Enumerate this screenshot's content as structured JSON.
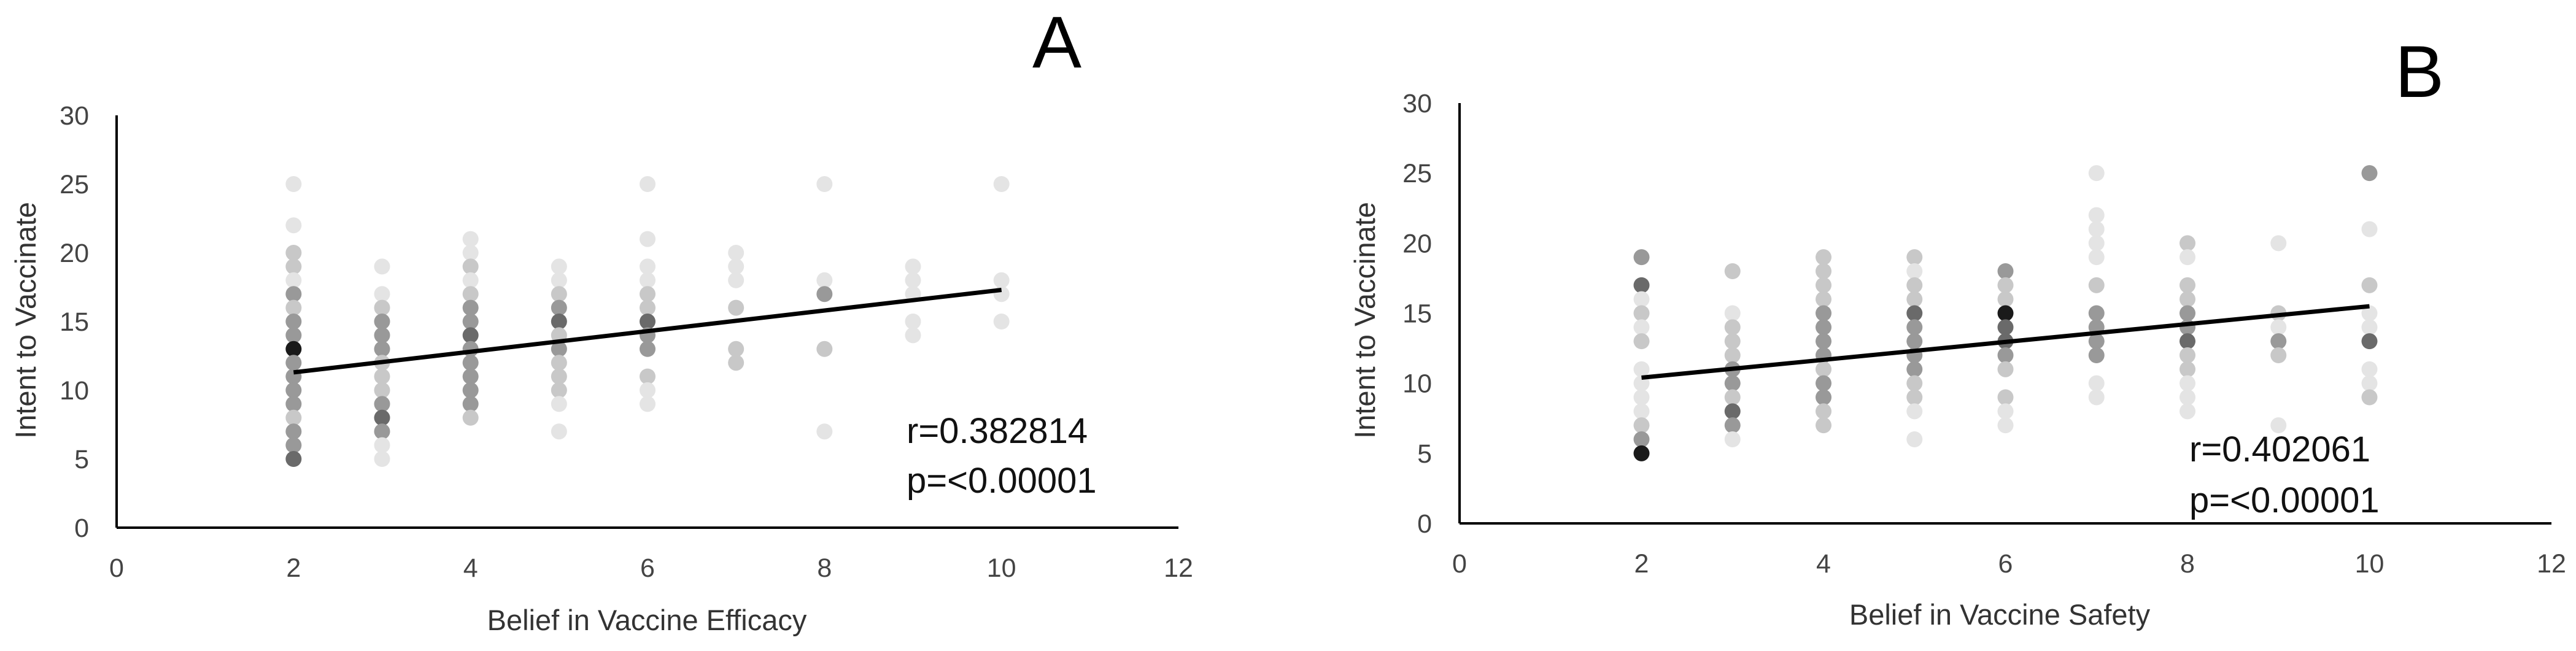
{
  "chart_data": [
    {
      "type": "scatter",
      "panel_label": "A",
      "xlabel": "Belief in Vaccine Efficacy",
      "ylabel": "Intent to Vaccinate",
      "xlim": [
        0,
        12
      ],
      "ylim": [
        0,
        30
      ],
      "xticks": [
        "0",
        "2",
        "4",
        "6",
        "8",
        "10",
        "12"
      ],
      "yticks": [
        "0",
        "5",
        "10",
        "15",
        "20",
        "25",
        "30"
      ],
      "grid": false,
      "legend": "none",
      "annotations": [
        "r=0.382814",
        "p=<0.00001"
      ],
      "trendline": {
        "x": [
          2,
          10
        ],
        "y": [
          11.3,
          17.3
        ]
      },
      "points": [
        [
          2,
          25,
          1
        ],
        [
          2,
          22,
          1
        ],
        [
          2,
          20,
          2
        ],
        [
          2,
          19,
          2
        ],
        [
          2,
          18,
          1
        ],
        [
          2,
          17,
          3
        ],
        [
          2,
          16,
          2
        ],
        [
          2,
          15,
          3
        ],
        [
          2,
          14,
          3
        ],
        [
          2,
          13,
          5
        ],
        [
          2,
          12,
          3
        ],
        [
          2,
          11,
          3
        ],
        [
          2,
          10,
          3
        ],
        [
          2,
          9,
          3
        ],
        [
          2,
          8,
          2
        ],
        [
          2,
          7,
          3
        ],
        [
          2,
          6,
          3
        ],
        [
          2,
          5,
          4
        ],
        [
          3,
          19,
          1
        ],
        [
          3,
          17,
          1
        ],
        [
          3,
          16,
          2
        ],
        [
          3,
          15,
          3
        ],
        [
          3,
          14,
          3
        ],
        [
          3,
          13,
          3
        ],
        [
          3,
          12,
          2
        ],
        [
          3,
          11,
          2
        ],
        [
          3,
          10,
          2
        ],
        [
          3,
          9,
          3
        ],
        [
          3,
          8,
          4
        ],
        [
          3,
          7,
          3
        ],
        [
          3,
          6,
          1
        ],
        [
          3,
          5,
          1
        ],
        [
          4,
          21,
          1
        ],
        [
          4,
          20,
          1
        ],
        [
          4,
          19,
          2
        ],
        [
          4,
          18,
          1
        ],
        [
          4,
          17,
          2
        ],
        [
          4,
          16,
          3
        ],
        [
          4,
          15,
          3
        ],
        [
          4,
          14,
          4
        ],
        [
          4,
          13,
          3
        ],
        [
          4,
          12,
          3
        ],
        [
          4,
          11,
          3
        ],
        [
          4,
          10,
          3
        ],
        [
          4,
          9,
          3
        ],
        [
          4,
          8,
          2
        ],
        [
          5,
          19,
          1
        ],
        [
          5,
          18,
          1
        ],
        [
          5,
          17,
          2
        ],
        [
          5,
          16,
          3
        ],
        [
          5,
          15,
          4
        ],
        [
          5,
          14,
          2
        ],
        [
          5,
          13,
          3
        ],
        [
          5,
          12,
          2
        ],
        [
          5,
          11,
          2
        ],
        [
          5,
          10,
          2
        ],
        [
          5,
          9,
          1
        ],
        [
          5,
          7,
          1
        ],
        [
          6,
          25,
          1
        ],
        [
          6,
          21,
          1
        ],
        [
          6,
          19,
          1
        ],
        [
          6,
          18,
          1
        ],
        [
          6,
          17,
          2
        ],
        [
          6,
          16,
          2
        ],
        [
          6,
          15,
          4
        ],
        [
          6,
          14,
          3
        ],
        [
          6,
          13,
          3
        ],
        [
          6,
          11,
          2
        ],
        [
          6,
          10,
          1
        ],
        [
          6,
          9,
          1
        ],
        [
          7,
          20,
          1
        ],
        [
          7,
          19,
          1
        ],
        [
          7,
          18,
          1
        ],
        [
          7,
          16,
          2
        ],
        [
          7,
          13,
          2
        ],
        [
          7,
          12,
          2
        ],
        [
          8,
          25,
          1
        ],
        [
          8,
          18,
          1
        ],
        [
          8,
          17,
          3
        ],
        [
          8,
          13,
          2
        ],
        [
          8,
          7,
          1
        ],
        [
          9,
          19,
          1
        ],
        [
          9,
          18,
          1
        ],
        [
          9,
          17,
          1
        ],
        [
          9,
          15,
          1
        ],
        [
          9,
          14,
          1
        ],
        [
          10,
          25,
          1
        ],
        [
          10,
          18,
          1
        ],
        [
          10,
          17,
          1
        ],
        [
          10,
          15,
          1
        ]
      ]
    },
    {
      "type": "scatter",
      "panel_label": "B",
      "xlabel": "Belief in Vaccine Safety",
      "ylabel": "Intent to Vaccinate",
      "xlim": [
        0,
        12
      ],
      "ylim": [
        0,
        30
      ],
      "xticks": [
        "0",
        "2",
        "4",
        "6",
        "8",
        "10",
        "12"
      ],
      "yticks": [
        "0",
        "5",
        "10",
        "15",
        "20",
        "25",
        "30"
      ],
      "grid": false,
      "legend": "none",
      "annotations": [
        "r=0.402061",
        "p=<0.00001"
      ],
      "trendline": {
        "x": [
          2,
          10
        ],
        "y": [
          10.4,
          15.5
        ]
      },
      "points": [
        [
          2,
          19,
          3
        ],
        [
          2,
          17,
          4
        ],
        [
          2,
          16,
          1
        ],
        [
          2,
          15,
          2
        ],
        [
          2,
          14,
          1
        ],
        [
          2,
          13,
          2
        ],
        [
          2,
          11,
          1
        ],
        [
          2,
          10,
          1
        ],
        [
          2,
          9,
          1
        ],
        [
          2,
          8,
          1
        ],
        [
          2,
          7,
          2
        ],
        [
          2,
          6,
          3
        ],
        [
          2,
          5,
          5
        ],
        [
          3,
          18,
          2
        ],
        [
          3,
          15,
          1
        ],
        [
          3,
          14,
          2
        ],
        [
          3,
          13,
          2
        ],
        [
          3,
          12,
          2
        ],
        [
          3,
          11,
          3
        ],
        [
          3,
          10,
          3
        ],
        [
          3,
          9,
          2
        ],
        [
          3,
          8,
          4
        ],
        [
          3,
          7,
          3
        ],
        [
          3,
          6,
          1
        ],
        [
          4,
          19,
          2
        ],
        [
          4,
          18,
          2
        ],
        [
          4,
          17,
          2
        ],
        [
          4,
          16,
          2
        ],
        [
          4,
          15,
          3
        ],
        [
          4,
          14,
          3
        ],
        [
          4,
          13,
          3
        ],
        [
          4,
          12,
          3
        ],
        [
          4,
          11,
          2
        ],
        [
          4,
          10,
          3
        ],
        [
          4,
          9,
          3
        ],
        [
          4,
          8,
          2
        ],
        [
          4,
          7,
          2
        ],
        [
          5,
          19,
          2
        ],
        [
          5,
          18,
          1
        ],
        [
          5,
          17,
          2
        ],
        [
          5,
          16,
          2
        ],
        [
          5,
          15,
          4
        ],
        [
          5,
          14,
          3
        ],
        [
          5,
          13,
          3
        ],
        [
          5,
          12,
          3
        ],
        [
          5,
          11,
          3
        ],
        [
          5,
          10,
          2
        ],
        [
          5,
          9,
          2
        ],
        [
          5,
          8,
          1
        ],
        [
          5,
          6,
          1
        ],
        [
          6,
          18,
          3
        ],
        [
          6,
          17,
          2
        ],
        [
          6,
          16,
          2
        ],
        [
          6,
          15,
          5
        ],
        [
          6,
          14,
          4
        ],
        [
          6,
          13,
          4
        ],
        [
          6,
          12,
          3
        ],
        [
          6,
          11,
          2
        ],
        [
          6,
          9,
          2
        ],
        [
          6,
          8,
          1
        ],
        [
          6,
          7,
          1
        ],
        [
          7,
          25,
          1
        ],
        [
          7,
          22,
          1
        ],
        [
          7,
          21,
          1
        ],
        [
          7,
          20,
          1
        ],
        [
          7,
          19,
          1
        ],
        [
          7,
          17,
          2
        ],
        [
          7,
          15,
          3
        ],
        [
          7,
          14,
          3
        ],
        [
          7,
          13,
          3
        ],
        [
          7,
          12,
          3
        ],
        [
          7,
          10,
          1
        ],
        [
          7,
          9,
          1
        ],
        [
          8,
          20,
          2
        ],
        [
          8,
          19,
          1
        ],
        [
          8,
          17,
          2
        ],
        [
          8,
          16,
          2
        ],
        [
          8,
          15,
          3
        ],
        [
          8,
          14,
          3
        ],
        [
          8,
          13,
          4
        ],
        [
          8,
          12,
          2
        ],
        [
          8,
          11,
          2
        ],
        [
          8,
          10,
          1
        ],
        [
          8,
          9,
          1
        ],
        [
          8,
          8,
          1
        ],
        [
          9,
          20,
          1
        ],
        [
          9,
          15,
          2
        ],
        [
          9,
          14,
          1
        ],
        [
          9,
          13,
          3
        ],
        [
          9,
          12,
          2
        ],
        [
          9,
          7,
          1
        ],
        [
          10,
          25,
          3
        ],
        [
          10,
          21,
          1
        ],
        [
          10,
          17,
          2
        ],
        [
          10,
          15,
          1
        ],
        [
          10,
          14,
          1
        ],
        [
          10,
          13,
          4
        ],
        [
          10,
          11,
          1
        ],
        [
          10,
          10,
          1
        ],
        [
          10,
          9,
          2
        ]
      ]
    }
  ],
  "colors": {
    "axis": "#000000",
    "trendline": "#000000",
    "point_shades": [
      "#e4e4e4",
      "#c8c8c8",
      "#999999",
      "#6a6a6a",
      "#1a1a1a"
    ]
  }
}
